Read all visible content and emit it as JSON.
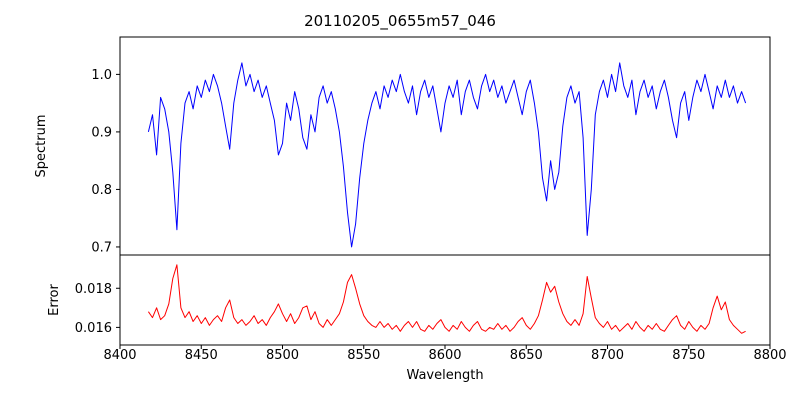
{
  "figure": {
    "background": "#ffffff",
    "axis_color": "#000000"
  },
  "chart_data": {
    "type": "line",
    "title": "20110205_0655m57_046",
    "xlabel": "Wavelength",
    "xlim": [
      8400,
      8800
    ],
    "xticks": [
      8400,
      8450,
      8500,
      8550,
      8600,
      8650,
      8700,
      8750,
      8800
    ],
    "xtick_labels": [
      "8400",
      "8450",
      "8500",
      "8550",
      "8600",
      "8650",
      "8700",
      "8750",
      "8800"
    ],
    "grid": false,
    "legend": "none",
    "x": [
      8417.5,
      8420,
      8422.5,
      8425,
      8427.5,
      8430,
      8432.5,
      8435,
      8437.5,
      8440,
      8442.5,
      8445,
      8447.5,
      8450,
      8452.5,
      8455,
      8457.5,
      8460,
      8462.5,
      8465,
      8467.5,
      8470,
      8472.5,
      8475,
      8477.5,
      8480,
      8482.5,
      8485,
      8487.5,
      8490,
      8492.5,
      8495,
      8497.5,
      8500,
      8502.5,
      8505,
      8507.5,
      8510,
      8512.5,
      8515,
      8517.5,
      8520,
      8522.5,
      8525,
      8527.5,
      8530,
      8532.5,
      8535,
      8537.5,
      8540,
      8542.5,
      8545,
      8547.5,
      8550,
      8552.5,
      8555,
      8557.5,
      8560,
      8562.5,
      8565,
      8567.5,
      8570,
      8572.5,
      8575,
      8577.5,
      8580,
      8582.5,
      8585,
      8587.5,
      8590,
      8592.5,
      8595,
      8597.5,
      8600,
      8602.5,
      8605,
      8607.5,
      8610,
      8612.5,
      8615,
      8617.5,
      8620,
      8622.5,
      8625,
      8627.5,
      8630,
      8632.5,
      8635,
      8637.5,
      8640,
      8642.5,
      8645,
      8647.5,
      8650,
      8652.5,
      8655,
      8657.5,
      8660,
      8662.5,
      8665,
      8667.5,
      8670,
      8672.5,
      8675,
      8677.5,
      8680,
      8682.5,
      8685,
      8687.5,
      8690,
      8692.5,
      8695,
      8697.5,
      8700,
      8702.5,
      8705,
      8707.5,
      8710,
      8712.5,
      8715,
      8717.5,
      8720,
      8722.5,
      8725,
      8727.5,
      8730,
      8732.5,
      8735,
      8737.5,
      8740,
      8742.5,
      8745,
      8747.5,
      8750,
      8752.5,
      8755,
      8757.5,
      8760,
      8762.5,
      8765,
      8767.5,
      8770,
      8772.5,
      8775,
      8777.5,
      8780,
      8782.5,
      8785
    ],
    "panels": [
      {
        "name": "spectrum",
        "ylabel": "Spectrum",
        "color": "#0000ff",
        "ylim": [
          0.686,
          1.065
        ],
        "yticks": [
          0.7,
          0.8,
          0.9,
          1.0
        ],
        "ytick_labels": [
          "0.7",
          "0.8",
          "0.9",
          "1.0"
        ],
        "values": [
          0.9,
          0.93,
          0.86,
          0.96,
          0.94,
          0.9,
          0.83,
          0.73,
          0.88,
          0.95,
          0.97,
          0.94,
          0.98,
          0.96,
          0.99,
          0.97,
          1.0,
          0.98,
          0.95,
          0.91,
          0.87,
          0.95,
          0.99,
          1.02,
          0.98,
          1.0,
          0.97,
          0.99,
          0.96,
          0.98,
          0.95,
          0.92,
          0.86,
          0.88,
          0.95,
          0.92,
          0.97,
          0.94,
          0.89,
          0.87,
          0.93,
          0.9,
          0.96,
          0.98,
          0.95,
          0.97,
          0.94,
          0.9,
          0.84,
          0.76,
          0.7,
          0.74,
          0.82,
          0.88,
          0.92,
          0.95,
          0.97,
          0.94,
          0.98,
          0.96,
          0.99,
          0.97,
          1.0,
          0.97,
          0.95,
          0.98,
          0.93,
          0.97,
          0.99,
          0.96,
          0.98,
          0.94,
          0.9,
          0.95,
          0.98,
          0.96,
          0.99,
          0.93,
          0.97,
          0.99,
          0.96,
          0.94,
          0.98,
          1.0,
          0.97,
          0.99,
          0.96,
          0.98,
          0.95,
          0.97,
          0.99,
          0.96,
          0.93,
          0.97,
          0.99,
          0.95,
          0.9,
          0.82,
          0.78,
          0.85,
          0.8,
          0.83,
          0.91,
          0.96,
          0.98,
          0.95,
          0.97,
          0.89,
          0.72,
          0.8,
          0.93,
          0.97,
          0.99,
          0.96,
          1.0,
          0.97,
          1.02,
          0.98,
          0.96,
          0.99,
          0.93,
          0.97,
          0.99,
          0.96,
          0.98,
          0.94,
          0.97,
          0.99,
          0.96,
          0.92,
          0.89,
          0.95,
          0.97,
          0.92,
          0.96,
          0.99,
          0.97,
          1.0,
          0.97,
          0.94,
          0.98,
          0.96,
          0.99,
          0.96,
          0.98,
          0.95,
          0.97,
          0.95
        ]
      },
      {
        "name": "error",
        "ylabel": "Error",
        "color": "#ff0000",
        "ylim": [
          0.0151,
          0.0197
        ],
        "yticks": [
          0.016,
          0.018
        ],
        "ytick_labels": [
          "0.016",
          "0.018"
        ],
        "values": [
          0.0168,
          0.0165,
          0.017,
          0.0164,
          0.0166,
          0.0172,
          0.0185,
          0.0192,
          0.017,
          0.0165,
          0.0168,
          0.0163,
          0.0166,
          0.0162,
          0.0165,
          0.0161,
          0.0164,
          0.0166,
          0.0163,
          0.017,
          0.0174,
          0.0165,
          0.0162,
          0.0164,
          0.0161,
          0.0163,
          0.0166,
          0.0162,
          0.0164,
          0.0161,
          0.0165,
          0.0168,
          0.0172,
          0.0167,
          0.0163,
          0.0167,
          0.0162,
          0.0165,
          0.017,
          0.0171,
          0.0164,
          0.0168,
          0.0162,
          0.016,
          0.0164,
          0.0161,
          0.0164,
          0.0167,
          0.0173,
          0.0183,
          0.0187,
          0.018,
          0.0172,
          0.0166,
          0.0163,
          0.0161,
          0.016,
          0.0163,
          0.016,
          0.0162,
          0.0159,
          0.0161,
          0.0158,
          0.0161,
          0.0163,
          0.016,
          0.0163,
          0.0159,
          0.0158,
          0.0161,
          0.0159,
          0.0162,
          0.0164,
          0.016,
          0.0158,
          0.0161,
          0.0159,
          0.0163,
          0.016,
          0.0158,
          0.0161,
          0.0163,
          0.0159,
          0.0158,
          0.016,
          0.0159,
          0.0162,
          0.0159,
          0.0161,
          0.0158,
          0.016,
          0.0163,
          0.0165,
          0.0161,
          0.0159,
          0.0162,
          0.0166,
          0.0174,
          0.0183,
          0.0178,
          0.0181,
          0.0173,
          0.0167,
          0.0163,
          0.0161,
          0.0164,
          0.0161,
          0.0167,
          0.0186,
          0.0175,
          0.0165,
          0.0162,
          0.016,
          0.0163,
          0.0159,
          0.0161,
          0.0158,
          0.016,
          0.0162,
          0.0159,
          0.0163,
          0.016,
          0.0158,
          0.0161,
          0.0159,
          0.0162,
          0.0159,
          0.0158,
          0.0161,
          0.0164,
          0.0166,
          0.0161,
          0.0159,
          0.0163,
          0.016,
          0.0158,
          0.0161,
          0.0159,
          0.0162,
          0.017,
          0.0176,
          0.0169,
          0.0173,
          0.0164,
          0.0161,
          0.0159,
          0.0157,
          0.0158
        ]
      }
    ]
  }
}
